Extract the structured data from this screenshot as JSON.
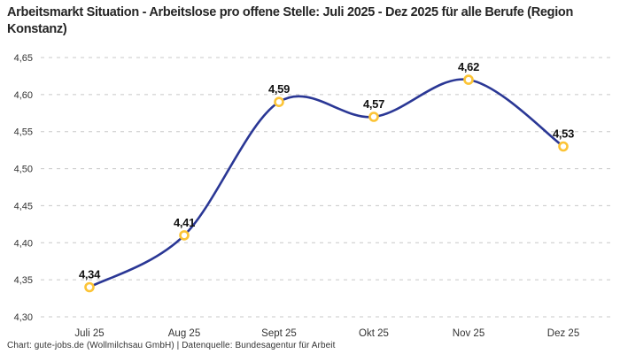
{
  "header": {
    "title": "Arbeitsmarkt Situation - Arbeitslose pro offene Stelle: Juli 2025 - Dez 2025 für alle Berufe (Region Konstanz)"
  },
  "footer": {
    "credit": "Chart: gute-jobs.de (Wollmilchsau GmbH) | Datenquelle: Bundesagentur für Arbeit"
  },
  "colors": {
    "line": "#2A3795",
    "marker_ring": "#FCC436",
    "marker_fill": "#FFFFFF",
    "grid": "#C8C8C8",
    "axis_text": "#333333",
    "value_label": "#111111",
    "title_text": "#252525"
  },
  "chart_data": {
    "type": "line",
    "title": "Arbeitsmarkt Situation - Arbeitslose pro offene Stelle: Juli 2025 - Dez 2025 für alle Berufe (Region Konstanz)",
    "categories": [
      "Juli 25",
      "Aug 25",
      "Sept 25",
      "Okt 25",
      "Nov 25",
      "Dez 25"
    ],
    "values": [
      4.34,
      4.41,
      4.59,
      4.57,
      4.62,
      4.53
    ],
    "point_labels": [
      "4,34",
      "4,41",
      "4,59",
      "4,57",
      "4,62",
      "4,53"
    ],
    "xlabel": "",
    "ylabel": "",
    "ylim": [
      4.3,
      4.65
    ],
    "y_ticks": [
      {
        "value": 4.65,
        "label": "4,65"
      },
      {
        "value": 4.6,
        "label": "4,60"
      },
      {
        "value": 4.55,
        "label": "4,55"
      },
      {
        "value": 4.5,
        "label": "4,50"
      },
      {
        "value": 4.45,
        "label": "4,45"
      },
      {
        "value": 4.4,
        "label": "4,40"
      },
      {
        "value": 4.35,
        "label": "4,35"
      },
      {
        "value": 4.3,
        "label": "4,30"
      }
    ],
    "grid": "horizontal-dashed",
    "legend": "none",
    "curve": "smooth",
    "marker": "open-circle"
  }
}
